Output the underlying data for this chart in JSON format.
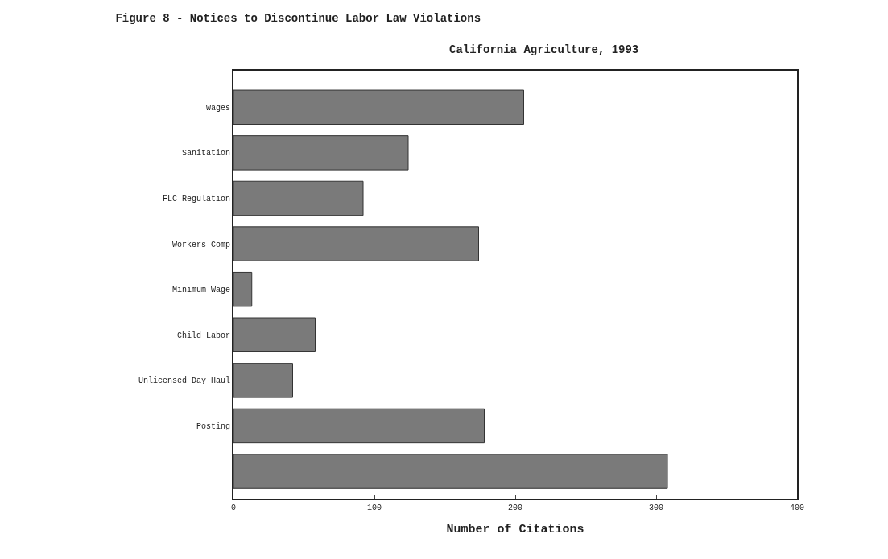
{
  "chart_data": {
    "type": "bar",
    "orientation": "horizontal",
    "title": "Figure 8 - Notices to Discontinue Labor Law Violations",
    "subtitle": "California Agriculture, 1993",
    "xlabel": "Number of Citations",
    "categories": [
      "Wages",
      "Sanitation",
      "FLC Regulation",
      "Workers Comp",
      "Minimum Wage",
      "Child Labor",
      "Unlicensed Day Haul",
      "Posting",
      null
    ],
    "values": [
      206,
      124,
      92,
      174,
      13,
      58,
      42,
      178,
      308
    ],
    "color": "#7a7a7a",
    "xlim": [
      0,
      400
    ],
    "xticks": [
      0,
      100,
      200,
      300,
      400
    ]
  }
}
